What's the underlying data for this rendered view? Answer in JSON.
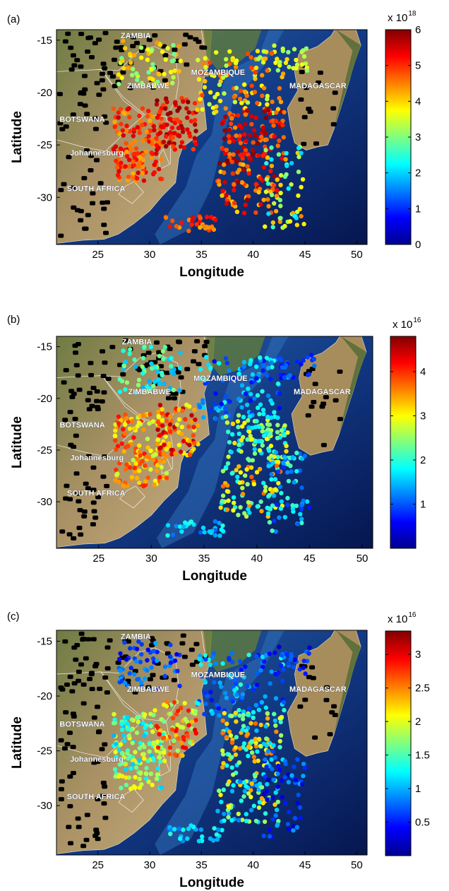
{
  "chart_data": [
    {
      "type": "scatter",
      "panel_label": "(a)",
      "xlabel": "Longitude",
      "ylabel": "Latitude",
      "xlim": [
        21,
        51
      ],
      "ylim": [
        -34.5,
        -14
      ],
      "xticks": [
        "25",
        "30",
        "35",
        "40",
        "45",
        "50"
      ],
      "yticks": [
        "-15",
        "-20",
        "-25",
        "-30"
      ],
      "colorbar": {
        "min": 0,
        "max": 6,
        "ticks": [
          "0",
          "1",
          "2",
          "3",
          "4",
          "5",
          "6"
        ],
        "multiplier_base": "x 10",
        "multiplier_exp": "18"
      },
      "places": [
        {
          "name": "ZAMBIA",
          "lon": 27.2,
          "lat": -14.8
        },
        {
          "name": "MOZAMBIQUE",
          "lon": 34.0,
          "lat": -18.3
        },
        {
          "name": "ZIMBABWE",
          "lon": 27.8,
          "lat": -19.6
        },
        {
          "name": "MADAGASCAR",
          "lon": 43.5,
          "lat": -19.6
        },
        {
          "name": "BOTSWANA",
          "lon": 21.3,
          "lat": -22.8
        },
        {
          "name": "Johannesburg",
          "lon": 22.3,
          "lat": -26.0
        },
        {
          "name": "SOUTH AFRICA",
          "lon": 22.0,
          "lat": -29.4
        }
      ],
      "clusters": [
        {
          "lon": [
            26.5,
            31.5
          ],
          "lat": [
            -28.5,
            -21.5
          ],
          "value": [
            4.2,
            5.6
          ],
          "count": 150
        },
        {
          "lon": [
            30.5,
            34.5
          ],
          "lat": [
            -25.5,
            -20.5
          ],
          "value": [
            4.8,
            6.0
          ],
          "count": 80
        },
        {
          "lon": [
            27.0,
            33.0
          ],
          "lat": [
            -19.5,
            -15.0
          ],
          "value": [
            2.8,
            4.4
          ],
          "count": 60
        },
        {
          "lon": [
            34.5,
            43.0
          ],
          "lat": [
            -22.0,
            -16.0
          ],
          "value": [
            3.2,
            5.0
          ],
          "count": 110
        },
        {
          "lon": [
            37.0,
            43.0
          ],
          "lat": [
            -26.5,
            -21.5
          ],
          "value": [
            4.4,
            6.0
          ],
          "count": 110
        },
        {
          "lon": [
            36.5,
            42.5
          ],
          "lat": [
            -31.5,
            -26.5
          ],
          "value": [
            4.0,
            6.0
          ],
          "count": 80
        },
        {
          "lon": [
            41.0,
            45.0
          ],
          "lat": [
            -33.0,
            -25.0
          ],
          "value": [
            1.8,
            4.5
          ],
          "count": 60
        },
        {
          "lon": [
            31.5,
            37.0
          ],
          "lat": [
            -33.3,
            -31.8
          ],
          "value": [
            4.2,
            5.5
          ],
          "count": 30
        },
        {
          "lon": [
            42.0,
            45.5
          ],
          "lat": [
            -18.0,
            -15.5
          ],
          "value": [
            3.0,
            4.0
          ],
          "count": 25
        }
      ]
    },
    {
      "type": "scatter",
      "panel_label": "(b)",
      "xlabel": "Longitude",
      "ylabel": "Latitude",
      "xlim": [
        21,
        51
      ],
      "ylim": [
        -34.5,
        -14
      ],
      "xticks": [
        "25",
        "30",
        "35",
        "40",
        "45",
        "50"
      ],
      "yticks": [
        "-15",
        "-20",
        "-25",
        "-30"
      ],
      "colorbar": {
        "min": 0,
        "max": 4.8,
        "ticks": [
          "1",
          "2",
          "3",
          "4"
        ],
        "multiplier_base": "x 10",
        "multiplier_exp": "16"
      },
      "places": [
        {
          "name": "ZAMBIA",
          "lon": 27.2,
          "lat": -14.8
        },
        {
          "name": "MOZAMBIQUE",
          "lon": 34.0,
          "lat": -18.3
        },
        {
          "name": "ZIMBABWE",
          "lon": 27.8,
          "lat": -19.6
        },
        {
          "name": "MADAGASCAR",
          "lon": 43.5,
          "lat": -19.6
        },
        {
          "name": "BOTSWANA",
          "lon": 21.3,
          "lat": -22.8
        },
        {
          "name": "Johannesburg",
          "lon": 22.3,
          "lat": -26.0
        },
        {
          "name": "SOUTH AFRICA",
          "lon": 22.0,
          "lat": -29.4
        }
      ],
      "clusters": [
        {
          "lon": [
            26.5,
            31.5
          ],
          "lat": [
            -28.5,
            -21.5
          ],
          "value": [
            2.6,
            4.2
          ],
          "count": 150
        },
        {
          "lon": [
            30.5,
            34.5
          ],
          "lat": [
            -25.5,
            -20.5
          ],
          "value": [
            2.8,
            4.6
          ],
          "count": 80
        },
        {
          "lon": [
            27.0,
            33.0
          ],
          "lat": [
            -19.5,
            -15.0
          ],
          "value": [
            1.4,
            2.6
          ],
          "count": 60
        },
        {
          "lon": [
            34.5,
            43.0
          ],
          "lat": [
            -22.0,
            -16.0
          ],
          "value": [
            0.6,
            2.0
          ],
          "count": 110
        },
        {
          "lon": [
            37.0,
            43.0
          ],
          "lat": [
            -26.5,
            -21.5
          ],
          "value": [
            1.4,
            3.2
          ],
          "count": 110
        },
        {
          "lon": [
            36.5,
            42.5
          ],
          "lat": [
            -31.5,
            -26.5
          ],
          "value": [
            1.6,
            3.8
          ],
          "count": 80
        },
        {
          "lon": [
            41.0,
            45.0
          ],
          "lat": [
            -33.0,
            -25.0
          ],
          "value": [
            0.6,
            2.2
          ],
          "count": 60
        },
        {
          "lon": [
            31.5,
            37.0
          ],
          "lat": [
            -33.3,
            -31.8
          ],
          "value": [
            1.0,
            2.0
          ],
          "count": 30
        },
        {
          "lon": [
            42.0,
            45.5
          ],
          "lat": [
            -18.0,
            -15.5
          ],
          "value": [
            0.6,
            1.2
          ],
          "count": 25
        }
      ]
    },
    {
      "type": "scatter",
      "panel_label": "(c)",
      "xlabel": "Longitude",
      "ylabel": "Latitude",
      "xlim": [
        21,
        51
      ],
      "ylim": [
        -34.5,
        -14
      ],
      "xticks": [
        "25",
        "30",
        "35",
        "40",
        "45",
        "50"
      ],
      "yticks": [
        "-15",
        "-20",
        "-25",
        "-30"
      ],
      "colorbar": {
        "min": 0,
        "max": 3.35,
        "ticks": [
          "0.5",
          "1",
          "1.5",
          "2",
          "2.5",
          "3"
        ],
        "multiplier_base": "x 10",
        "multiplier_exp": "16"
      },
      "places": [
        {
          "name": "ZAMBIA",
          "lon": 27.2,
          "lat": -14.8
        },
        {
          "name": "MOZAMBIQUE",
          "lon": 34.0,
          "lat": -18.3
        },
        {
          "name": "ZIMBABWE",
          "lon": 27.8,
          "lat": -19.6
        },
        {
          "name": "MADAGASCAR",
          "lon": 43.5,
          "lat": -19.6
        },
        {
          "name": "BOTSWANA",
          "lon": 21.3,
          "lat": -22.8
        },
        {
          "name": "Johannesburg",
          "lon": 22.3,
          "lat": -26.0
        },
        {
          "name": "SOUTH AFRICA",
          "lon": 22.0,
          "lat": -29.4
        }
      ],
      "clusters": [
        {
          "lon": [
            26.5,
            31.5
          ],
          "lat": [
            -28.5,
            -21.5
          ],
          "value": [
            1.0,
            2.2
          ],
          "count": 150
        },
        {
          "lon": [
            30.5,
            34.5
          ],
          "lat": [
            -25.5,
            -20.5
          ],
          "value": [
            1.6,
            3.0
          ],
          "count": 80
        },
        {
          "lon": [
            27.0,
            33.0
          ],
          "lat": [
            -19.5,
            -15.0
          ],
          "value": [
            0.3,
            1.0
          ],
          "count": 60
        },
        {
          "lon": [
            34.5,
            43.0
          ],
          "lat": [
            -22.0,
            -16.0
          ],
          "value": [
            0.4,
            1.4
          ],
          "count": 110
        },
        {
          "lon": [
            37.0,
            43.0
          ],
          "lat": [
            -26.5,
            -21.5
          ],
          "value": [
            1.0,
            2.6
          ],
          "count": 110
        },
        {
          "lon": [
            36.5,
            42.5
          ],
          "lat": [
            -31.5,
            -26.5
          ],
          "value": [
            0.8,
            2.4
          ],
          "count": 80
        },
        {
          "lon": [
            41.0,
            45.0
          ],
          "lat": [
            -33.0,
            -25.0
          ],
          "value": [
            0.2,
            1.0
          ],
          "count": 60
        },
        {
          "lon": [
            31.5,
            37.0
          ],
          "lat": [
            -33.3,
            -31.8
          ],
          "value": [
            0.8,
            1.4
          ],
          "count": 30
        },
        {
          "lon": [
            42.0,
            45.5
          ],
          "lat": [
            -18.0,
            -15.5
          ],
          "value": [
            0.2,
            0.8
          ],
          "count": 25
        }
      ]
    }
  ],
  "colors": {
    "ocean_deep": "#0a1f5c",
    "ocean_shelf": "#2f6fb8",
    "land_dry": "#b59a6a",
    "land_green": "#5f7a3a",
    "madagascar": "#a88d5c",
    "masked_point": "#000000"
  }
}
